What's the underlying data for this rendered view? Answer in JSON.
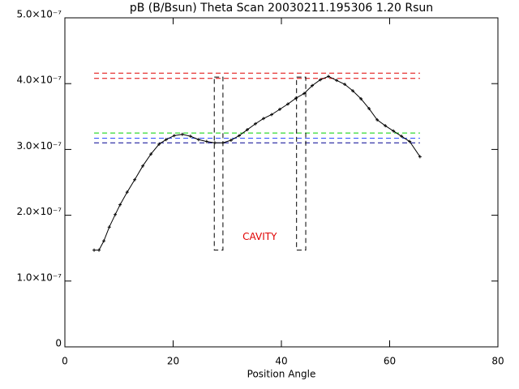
{
  "chart_data": {
    "type": "line",
    "title": "pB (B/Bsun) Theta Scan 20030211.195306 1.20 Rsun",
    "xlabel": "Position Angle",
    "annotation": "CAVITY",
    "annotation_color": "#e00000",
    "xlim": [
      0,
      80
    ],
    "xticks": [
      0,
      20,
      40,
      60,
      80
    ],
    "ylim": [
      0,
      5e-07
    ],
    "yticks": [
      0,
      {
        "value": 1e-07,
        "label": "1.0×10⁻⁷"
      },
      {
        "value": 2e-07,
        "label": "2.0×10⁻⁷"
      },
      {
        "value": 3e-07,
        "label": "3.0×10⁻⁷"
      },
      {
        "value": 4e-07,
        "label": "4.0×10⁻⁷"
      },
      {
        "value": 5e-07,
        "label": "5.0×10⁻⁷"
      }
    ],
    "x": [
      5.4,
      6.3,
      7.2,
      8.2,
      9.3,
      10.2,
      11.5,
      12.9,
      14.4,
      15.9,
      17.4,
      18.7,
      20.2,
      21.7,
      23.2,
      24.7,
      26.2,
      27.7,
      29.2,
      30.7,
      32.2,
      33.7,
      35.2,
      36.7,
      38.2,
      39.7,
      41.2,
      42.7,
      44.2,
      45.7,
      47.2,
      48.7,
      50.2,
      51.7,
      53.2,
      54.7,
      56.2,
      57.7,
      59.2,
      60.7,
      62.2,
      63.7,
      65.6
    ],
    "series": [
      {
        "color": "#000000",
        "values": [
          1.47e-07,
          1.47e-07,
          1.61e-07,
          1.82e-07,
          2.01e-07,
          2.16e-07,
          2.35e-07,
          2.54e-07,
          2.75e-07,
          2.93e-07,
          3.08e-07,
          3.15e-07,
          3.21e-07,
          3.23e-07,
          3.2e-07,
          3.15e-07,
          3.12e-07,
          3.1e-07,
          3.1e-07,
          3.14e-07,
          3.21e-07,
          3.3e-07,
          3.39e-07,
          3.47e-07,
          3.53e-07,
          3.61e-07,
          3.69e-07,
          3.78e-07,
          3.85e-07,
          3.97e-07,
          4.06e-07,
          4.11e-07,
          4.05e-07,
          3.99e-07,
          3.89e-07,
          3.77e-07,
          3.62e-07,
          3.45e-07,
          3.36e-07,
          3.28e-07,
          3.2e-07,
          3.12e-07,
          2.89e-07
        ]
      }
    ],
    "hlines": [
      {
        "color": "#e00000",
        "value": 4.16e-07
      },
      {
        "color": "#e00000",
        "value": 4.08e-07
      },
      {
        "color": "#00d000",
        "value": 3.25e-07
      },
      {
        "color": "#2040ff",
        "value": 3.17e-07
      },
      {
        "color": "#000090",
        "value": 3.1e-07
      }
    ],
    "boxes": [
      {
        "x0": 27.6,
        "x1": 29.2,
        "y0": 1.47e-07,
        "y1": 4.1e-07
      },
      {
        "x0": 42.8,
        "x1": 44.5,
        "y0": 1.47e-07,
        "y1": 4.1e-07
      }
    ]
  }
}
